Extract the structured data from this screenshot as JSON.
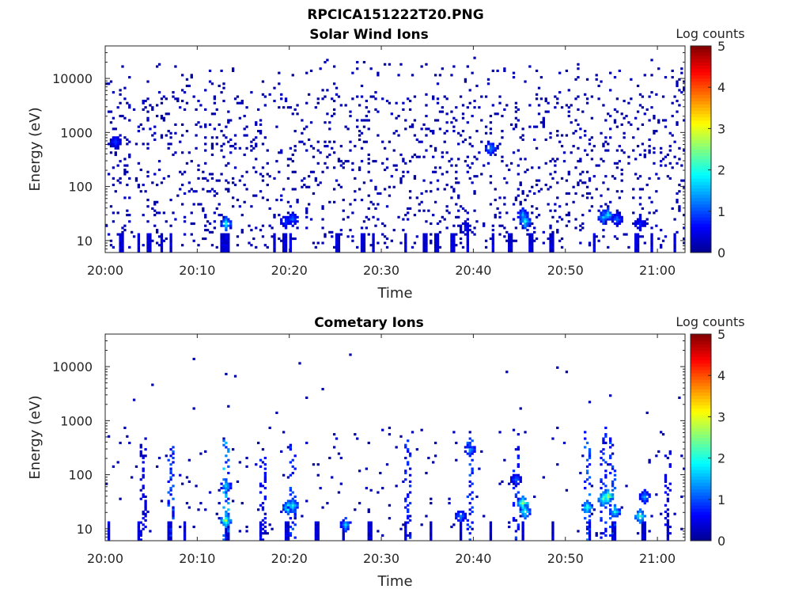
{
  "figure_title": "RPCICA151222T20.PNG",
  "colormap": [
    "#00008f",
    "#0000ff",
    "#0080ff",
    "#00ffff",
    "#80ff80",
    "#ffff00",
    "#ff8000",
    "#ff0000",
    "#800000"
  ],
  "chart_data": [
    {
      "type": "heatmap",
      "title": "Solar Wind Ions",
      "xlabel": "Time",
      "ylabel": "Energy (eV)",
      "x_ticks": [
        "20:00",
        "20:10",
        "20:20",
        "20:30",
        "20:40",
        "20:50",
        "21:00"
      ],
      "y_scale": "log",
      "y_ticks": [
        10,
        100,
        1000,
        10000
      ],
      "y_tick_labels": [
        "10",
        "100",
        "1000",
        "10000"
      ],
      "xlim_minutes": [
        0,
        63
      ],
      "ylim": [
        6,
        40000
      ],
      "colorbar": {
        "label": "Log counts",
        "range": [
          0,
          5
        ],
        "ticks": [
          "0",
          "1",
          "2",
          "3",
          "4",
          "5"
        ]
      },
      "background_rate": 0.075,
      "low_energy_columns_minutes": [
        1.5,
        3.6,
        4.6,
        6.1,
        7.2,
        12.5,
        13.2,
        18.4,
        19.3,
        20.2,
        25.1,
        27.8,
        29.2,
        32.5,
        34.6,
        35.8,
        37.7,
        39.4,
        42.2,
        43.8,
        46.1,
        48.3,
        53.2,
        57.6,
        59.4,
        61.8
      ],
      "hotspots": [
        {
          "t": 13.2,
          "e": 20,
          "log_counts": 1.8
        },
        {
          "t": 19.7,
          "e": 22,
          "log_counts": 0.9
        },
        {
          "t": 20.3,
          "e": 25,
          "log_counts": 1.1
        },
        {
          "t": 39.1,
          "e": 18,
          "log_counts": 0.7
        },
        {
          "t": 41.9,
          "e": 500,
          "log_counts": 1.4
        },
        {
          "t": 45.3,
          "e": 30,
          "log_counts": 1.5
        },
        {
          "t": 45.7,
          "e": 22,
          "log_counts": 1.9
        },
        {
          "t": 54.0,
          "e": 28,
          "log_counts": 1.6
        },
        {
          "t": 54.6,
          "e": 30,
          "log_counts": 1.8
        },
        {
          "t": 55.5,
          "e": 25,
          "log_counts": 1.2
        },
        {
          "t": 58.2,
          "e": 20,
          "log_counts": 0.8
        },
        {
          "t": 1.0,
          "e": 700,
          "log_counts": 0.9
        }
      ]
    },
    {
      "type": "heatmap",
      "title": "Cometary Ions",
      "xlabel": "Time",
      "ylabel": "Energy (eV)",
      "x_ticks": [
        "20:00",
        "20:10",
        "20:20",
        "20:30",
        "20:40",
        "20:50",
        "21:00"
      ],
      "y_scale": "log",
      "y_ticks": [
        10,
        100,
        1000,
        10000
      ],
      "y_tick_labels": [
        "10",
        "100",
        "1000",
        "10000"
      ],
      "xlim_minutes": [
        0,
        63
      ],
      "ylim": [
        6,
        40000
      ],
      "colorbar": {
        "label": "Log counts",
        "range": [
          0,
          5
        ],
        "ticks": [
          "0",
          "1",
          "2",
          "3",
          "4",
          "5"
        ]
      },
      "background_rate": 0.012,
      "low_energy_columns_minutes": [
        0.4,
        3.5,
        6.8,
        8.6,
        13.1,
        16.9,
        19.5,
        22.8,
        25.9,
        28.6,
        32.5,
        35.3,
        38.6,
        41.9,
        45.4,
        48.6,
        52.5,
        55.2,
        58.3,
        61.2
      ],
      "vertical_streaks": [
        {
          "t": 4.0,
          "e_top": 500,
          "log_counts": 0.6
        },
        {
          "t": 7.0,
          "e_top": 400,
          "log_counts": 1.2
        },
        {
          "t": 13.0,
          "e_top": 450,
          "log_counts": 1.7
        },
        {
          "t": 17.2,
          "e_top": 300,
          "log_counts": 0.8
        },
        {
          "t": 20.3,
          "e_top": 400,
          "log_counts": 1.1
        },
        {
          "t": 32.8,
          "e_top": 500,
          "log_counts": 0.9
        },
        {
          "t": 39.5,
          "e_top": 500,
          "log_counts": 1.2
        },
        {
          "t": 44.6,
          "e_top": 350,
          "log_counts": 1.0
        },
        {
          "t": 52.4,
          "e_top": 700,
          "log_counts": 1.3
        },
        {
          "t": 54.0,
          "e_top": 900,
          "log_counts": 1.0
        },
        {
          "t": 55.0,
          "e_top": 500,
          "log_counts": 1.1
        },
        {
          "t": 61.0,
          "e_top": 300,
          "log_counts": 0.6
        }
      ],
      "hotspots": [
        {
          "t": 13.2,
          "e": 15,
          "log_counts": 2.6
        },
        {
          "t": 13.0,
          "e": 60,
          "log_counts": 1.7
        },
        {
          "t": 19.8,
          "e": 25,
          "log_counts": 2.1
        },
        {
          "t": 20.3,
          "e": 28,
          "log_counts": 1.9
        },
        {
          "t": 26.0,
          "e": 12,
          "log_counts": 1.6
        },
        {
          "t": 38.6,
          "e": 18,
          "log_counts": 1.3
        },
        {
          "t": 39.5,
          "e": 300,
          "log_counts": 1.5
        },
        {
          "t": 44.6,
          "e": 80,
          "log_counts": 1.0
        },
        {
          "t": 45.3,
          "e": 30,
          "log_counts": 2.6
        },
        {
          "t": 45.7,
          "e": 20,
          "log_counts": 2.1
        },
        {
          "t": 52.4,
          "e": 25,
          "log_counts": 2.2
        },
        {
          "t": 54.0,
          "e": 35,
          "log_counts": 2.4
        },
        {
          "t": 54.6,
          "e": 40,
          "log_counts": 2.7
        },
        {
          "t": 55.3,
          "e": 20,
          "log_counts": 2.0
        },
        {
          "t": 58.2,
          "e": 18,
          "log_counts": 2.3
        },
        {
          "t": 58.6,
          "e": 40,
          "log_counts": 1.4
        }
      ],
      "sparse_points": [
        {
          "t": 49.2,
          "e": 10000,
          "log_counts": 0.2
        },
        {
          "t": 23.5,
          "e": 4000,
          "log_counts": 0.2
        },
        {
          "t": 9.5,
          "e": 1700,
          "log_counts": 0.2
        },
        {
          "t": 18.7,
          "e": 1400,
          "log_counts": 0.2
        },
        {
          "t": 52.6,
          "e": 2300,
          "log_counts": 0.2
        }
      ]
    }
  ]
}
